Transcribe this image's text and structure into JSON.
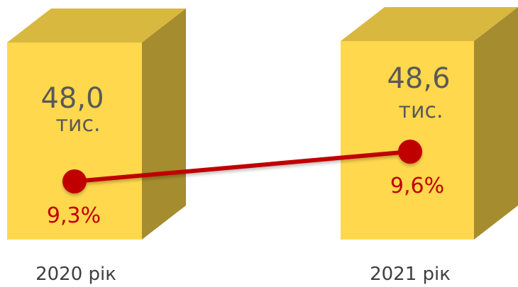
{
  "chart_data": {
    "type": "bar",
    "categories": [
      "2020 рік",
      "2021 рік"
    ],
    "series": [
      {
        "values": [
          48.0,
          48.6
        ],
        "labels": [
          "48,0",
          "48,6"
        ],
        "unit": "тис."
      },
      {
        "type": "line",
        "values": [
          9.3,
          9.6
        ],
        "labels": [
          "9,3%",
          "9,6%"
        ]
      }
    ]
  },
  "colors": {
    "bar_front": "#ffd84d",
    "bar_top": "#d9b83f",
    "bar_side": "#a58c2e",
    "line": "#c00000",
    "marker": "#c00000"
  }
}
